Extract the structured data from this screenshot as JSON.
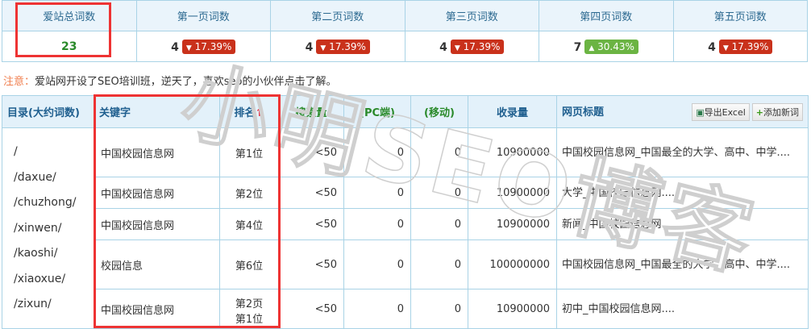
{
  "stats": {
    "headers": [
      "爱站总词数",
      "第一页词数",
      "第二页词数",
      "第三页词数",
      "第四页词数",
      "第五页词数"
    ],
    "total": "23",
    "pages": [
      {
        "count": "4",
        "change": "17.39%",
        "dir": "down"
      },
      {
        "count": "4",
        "change": "17.39%",
        "dir": "down"
      },
      {
        "count": "4",
        "change": "17.39%",
        "dir": "down"
      },
      {
        "count": "7",
        "change": "30.43%",
        "dir": "up"
      },
      {
        "count": "4",
        "change": "17.39%",
        "dir": "down"
      }
    ],
    "colors": {
      "down": "#c9311b",
      "up": "#6bb443"
    }
  },
  "note": {
    "label": "注意：",
    "text": "爱站网开设了SEO培训班，逆天了，喜欢seo的小伙伴点击了解。"
  },
  "table": {
    "headers": {
      "dir": "目录(大约词数)",
      "keyword": "关键字",
      "rank": "排名",
      "rank_sort": "↑",
      "search": "搜索量",
      "pc": "(PC端)",
      "mobile": "(移动)",
      "indexed": "收录量",
      "title": "网页标题"
    },
    "export_label": "导出Excel",
    "add_label": "添加新词",
    "dirs": [
      "/",
      "/daxue/",
      "/chuzhong/",
      "/xinwen/",
      "/kaoshi/",
      "/xiaoxue/",
      "/zixun/"
    ],
    "rows": [
      {
        "keyword": "中国校园信息网",
        "rank": "第1位",
        "search": "<50",
        "pc": "0",
        "mobile": "0",
        "indexed": "10900000",
        "title": "中国校园信息网_中国最全的大学、高中、中学...."
      },
      {
        "keyword": "中国校园信息网",
        "rank": "第2位",
        "search": "<50",
        "pc": "0",
        "mobile": "0",
        "indexed": "10900000",
        "title": "大学_中国校园信息网...."
      },
      {
        "keyword": "中国校园信息网",
        "rank": "第4位",
        "search": "<50",
        "pc": "0",
        "mobile": "0",
        "indexed": "10900000",
        "title": "新闻_中国校园信息网...."
      },
      {
        "keyword": "校园信息",
        "rank": "第6位",
        "search": "<50",
        "pc": "0",
        "mobile": "0",
        "indexed": "100000000",
        "title": "中国校园信息网_中国最全的大学、高中、中学...."
      },
      {
        "keyword": "中国校园信息网",
        "rank": "第2页第1位",
        "search": "<50",
        "pc": "0",
        "mobile": "0",
        "indexed": "10900000",
        "title": "初中_中国校园信息网...."
      }
    ]
  },
  "watermark": "小明SEO博客"
}
